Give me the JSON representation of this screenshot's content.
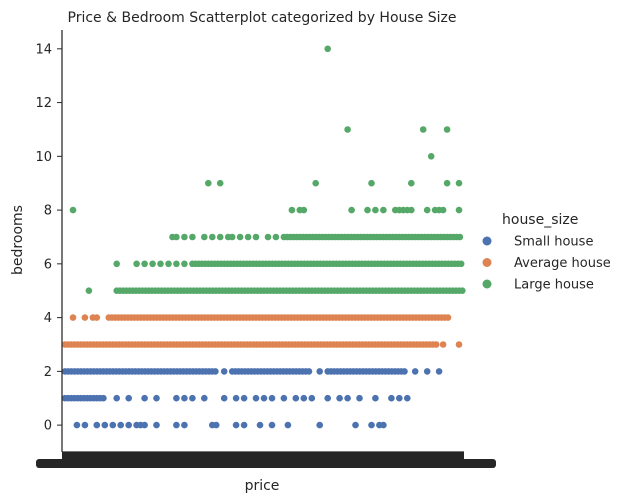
{
  "chart_data": {
    "type": "scatter",
    "title": "Price & Bedroom Scatterplot categorized by House Size",
    "xlabel": "price",
    "ylabel": "bedrooms",
    "ylim": [
      -1,
      14.7
    ],
    "yticks": [
      0,
      2,
      4,
      6,
      8,
      10,
      12,
      14
    ],
    "x_range": [
      0,
      1
    ],
    "x_scale": "categorical (thousands of unique price values; tick labels overlap into a solid band)",
    "grid": false,
    "legend": {
      "title": "house_size",
      "placement": "right",
      "entries": [
        "Small house",
        "Average house",
        "Large house"
      ]
    },
    "series": [
      {
        "name": "Small house",
        "color": "#4c72b0",
        "bands": [
          {
            "y": 2,
            "segments": [
              [
                0.0,
                0.38
              ],
              [
                0.42,
                0.62
              ],
              [
                0.66,
                0.86
              ]
            ],
            "sparse": [
              0.4,
              0.64,
              0.88,
              0.91,
              0.94
            ]
          },
          {
            "y": 1,
            "segments": [
              [
                0.0,
                0.1
              ]
            ],
            "sparse": [
              0.13,
              0.16,
              0.2,
              0.23,
              0.28,
              0.3,
              0.32,
              0.35,
              0.4,
              0.43,
              0.45,
              0.48,
              0.5,
              0.52,
              0.55,
              0.58,
              0.6,
              0.62,
              0.66,
              0.69,
              0.71,
              0.74,
              0.78,
              0.82,
              0.84,
              0.86
            ]
          },
          {
            "y": 0,
            "sparse": [
              0.03,
              0.05,
              0.08,
              0.1,
              0.12,
              0.14,
              0.16,
              0.18,
              0.19,
              0.2,
              0.23,
              0.28,
              0.3,
              0.37,
              0.38,
              0.43,
              0.45,
              0.49,
              0.52,
              0.56,
              0.64,
              0.73,
              0.77,
              0.79,
              0.8
            ]
          }
        ]
      },
      {
        "name": "Average house",
        "color": "#dd8452",
        "bands": [
          {
            "y": 4,
            "segments": [
              [
                0.11,
                0.97
              ]
            ],
            "sparse": [
              0.02,
              0.05,
              0.07,
              0.08
            ]
          },
          {
            "y": 3,
            "segments": [
              [
                0.0,
                0.94
              ]
            ],
            "sparse": [
              0.95,
              0.99
            ]
          }
        ]
      },
      {
        "name": "Large house",
        "color": "#55a868",
        "bands": [
          {
            "y": 14,
            "sparse": [
              0.66
            ]
          },
          {
            "y": 11,
            "sparse": [
              0.71,
              0.9,
              0.96
            ]
          },
          {
            "y": 10,
            "sparse": [
              0.92
            ]
          },
          {
            "y": 9,
            "sparse": [
              0.36,
              0.39,
              0.63,
              0.77,
              0.87,
              0.96,
              0.99
            ]
          },
          {
            "y": 8,
            "sparse": [
              0.02,
              0.57,
              0.59,
              0.6,
              0.72,
              0.76,
              0.78,
              0.8,
              0.83,
              0.84,
              0.85,
              0.86,
              0.87,
              0.91,
              0.93,
              0.94,
              0.95,
              0.99
            ]
          },
          {
            "y": 7,
            "segments": [
              [
                0.55,
                1.0
              ]
            ],
            "sparse": [
              0.27,
              0.28,
              0.3,
              0.32,
              0.35,
              0.37,
              0.39,
              0.41,
              0.42,
              0.44,
              0.46,
              0.48,
              0.51,
              0.53
            ]
          },
          {
            "y": 6,
            "segments": [
              [
                0.32,
                1.0
              ]
            ],
            "sparse": [
              0.13,
              0.18,
              0.2,
              0.22,
              0.24,
              0.26,
              0.28,
              0.3
            ]
          },
          {
            "y": 5,
            "segments": [
              [
                0.13,
                1.0
              ]
            ],
            "sparse": [
              0.06
            ]
          }
        ]
      }
    ]
  }
}
